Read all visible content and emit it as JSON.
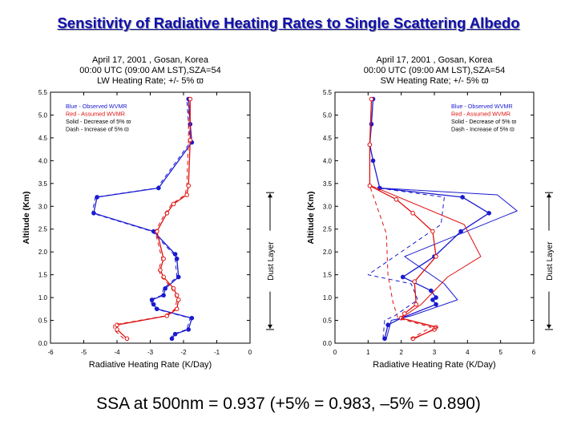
{
  "slide": {
    "title": "Sensitivity of Radiative Heating Rates to Single Scattering Albedo",
    "caption": "SSA at 500nm = 0.937 (+5% = 0.983, –5% = 0.890)"
  },
  "colors": {
    "title": "#1010b0",
    "blue": "#1a1ad0",
    "red": "#e01010",
    "black": "#000000"
  },
  "chart_data": [
    {
      "type": "line",
      "title_lines": [
        "April 17, 2001 , Gosan, Korea",
        "00:00 UTC (09:00 AM LST),SZA=54",
        "LW Heating Rate; +/- 5% ϖ"
      ],
      "xlabel": "Radiative Heating Rate (K/Day)",
      "ylabel": "Altitude (Km)",
      "xlim": [
        -6,
        0
      ],
      "ylim": [
        0,
        5.5
      ],
      "xticks": [
        -6,
        -5,
        -4,
        -3,
        -2,
        -1,
        0
      ],
      "xtick_labels": [
        "-6",
        "-5",
        "-4",
        "-3",
        "-2",
        "-1",
        "0"
      ],
      "yticks": [
        0,
        0.5,
        1,
        1.5,
        2,
        2.5,
        3,
        3.5,
        4,
        4.5,
        5,
        5.5
      ],
      "ytick_labels": [
        "0.0",
        "0.5",
        "1.0",
        "1.5",
        "2.0",
        "2.5",
        "3.0",
        "3.5",
        "4.0",
        "4.5",
        "5.0",
        "5.5"
      ],
      "grid": false,
      "legend_position": "top-left",
      "legend": [
        {
          "text": "Blue - Observed WVMR",
          "color": "#1a1ad0"
        },
        {
          "text": "Red  - Assumed WVMR",
          "color": "#e01010"
        },
        {
          "text": "Solid - Decrease of 5% ϖ",
          "color": "#000000"
        },
        {
          "text": "Dash - Increase of 5% ϖ",
          "color": "#000000"
        }
      ],
      "annotation": {
        "label": "Dust Layer",
        "y_from": 0.3,
        "y_to": 3.3
      },
      "series": [
        {
          "color": "blue",
          "dash": false,
          "markers": "filled",
          "x": [
            -2.35,
            -2.25,
            -1.85,
            -1.75,
            -2.8,
            -2.9,
            -2.95,
            -2.6,
            -2.55,
            -2.15,
            -2.2,
            -2.25,
            -2.9,
            -4.7,
            -4.6,
            -2.75,
            -1.75,
            -1.8,
            -1.85
          ],
          "y": [
            0.1,
            0.2,
            0.3,
            0.55,
            0.75,
            0.85,
            0.95,
            1.05,
            1.2,
            1.45,
            1.85,
            1.95,
            2.45,
            2.85,
            3.2,
            3.4,
            4.4,
            4.8,
            5.35
          ]
        },
        {
          "color": "blue",
          "dash": true,
          "markers": "none",
          "x": [
            -2.4,
            -2.3,
            -1.9,
            -1.8,
            -2.85,
            -2.95,
            -3.0,
            -2.65,
            -2.6,
            -2.2,
            -2.25,
            -2.3,
            -2.95,
            -4.75,
            -4.65,
            -2.8,
            -1.8,
            -1.85,
            -1.9
          ],
          "y": [
            0.1,
            0.2,
            0.3,
            0.55,
            0.75,
            0.85,
            0.95,
            1.05,
            1.2,
            1.45,
            1.85,
            1.95,
            2.45,
            2.85,
            3.2,
            3.4,
            4.4,
            4.8,
            5.35
          ]
        },
        {
          "color": "red",
          "dash": false,
          "markers": "open",
          "x": [
            -3.7,
            -4.0,
            -4.0,
            -2.5,
            -2.2,
            -2.15,
            -2.2,
            -2.3,
            -2.6,
            -2.7,
            -2.6,
            -2.8,
            -2.5,
            -2.3,
            -1.9,
            -1.85,
            -1.8,
            -1.8
          ],
          "y": [
            0.1,
            0.3,
            0.4,
            0.6,
            0.75,
            0.95,
            1.05,
            1.2,
            1.45,
            1.6,
            1.85,
            2.45,
            2.85,
            3.05,
            3.25,
            3.45,
            4.45,
            5.35
          ]
        },
        {
          "color": "red",
          "dash": true,
          "markers": "none",
          "x": [
            -3.8,
            -4.1,
            -4.1,
            -2.55,
            -2.25,
            -2.2,
            -2.25,
            -2.35,
            -2.65,
            -2.75,
            -2.65,
            -2.85,
            -2.55,
            -2.35,
            -1.95,
            -1.9,
            -1.85,
            -1.85
          ],
          "y": [
            0.1,
            0.3,
            0.4,
            0.6,
            0.75,
            0.95,
            1.05,
            1.2,
            1.45,
            1.6,
            1.85,
            2.45,
            2.85,
            3.05,
            3.25,
            3.45,
            4.45,
            5.35
          ]
        }
      ]
    },
    {
      "type": "line",
      "title_lines": [
        "April 17, 2001 , Gosan, Korea",
        "00:00 UTC (09:00 AM LST),SZA=54",
        "SW Heating Rate; +/- 5% ϖ"
      ],
      "xlabel": "Radiative Heating Rate (K/Day)",
      "ylabel": "Altitude (Km)",
      "xlim": [
        0,
        6
      ],
      "ylim": [
        0,
        5.5
      ],
      "xticks": [
        0,
        1,
        2,
        3,
        4,
        5,
        6
      ],
      "xtick_labels": [
        "0",
        "1",
        "2",
        "3",
        "4",
        "5",
        "6"
      ],
      "yticks": [
        0,
        0.5,
        1,
        1.5,
        2,
        2.5,
        3,
        3.5,
        4,
        4.5,
        5,
        5.5
      ],
      "ytick_labels": [
        "0.0",
        "0.5",
        "1.0",
        "1.5",
        "2.0",
        "2.5",
        "3.0",
        "3.5",
        "4.0",
        "4.5",
        "5.0",
        "5.5"
      ],
      "grid": false,
      "legend_position": "top-right",
      "legend": [
        {
          "text": "Blue - Observed WVMR",
          "color": "#1a1ad0"
        },
        {
          "text": "Red  - Assumed WVMR",
          "color": "#e01010"
        },
        {
          "text": "Solid - Decrease of 5% ϖ",
          "color": "#000000"
        },
        {
          "text": "Dash - Increase of 5% ϖ",
          "color": "#000000"
        }
      ],
      "annotation": {
        "label": "Dust Layer",
        "y_from": 0.3,
        "y_to": 3.3
      },
      "series": [
        {
          "color": "blue",
          "dash": false,
          "markers": "filled",
          "x": [
            1.5,
            1.6,
            2.0,
            3.05,
            2.95,
            3.05,
            2.9,
            2.05,
            3.0,
            3.8,
            4.65,
            3.85,
            1.35,
            1.15,
            1.05,
            1.1,
            1.15
          ],
          "y": [
            0.1,
            0.4,
            0.55,
            0.85,
            0.95,
            1.0,
            1.15,
            1.45,
            1.9,
            2.45,
            2.85,
            3.2,
            3.4,
            4.0,
            4.35,
            4.8,
            5.35
          ]
        },
        {
          "color": "blue",
          "dash": false,
          "markers": "none",
          "x": [
            1.55,
            1.7,
            2.3,
            3.7,
            3.3,
            2.1,
            5.5,
            4.9,
            1.35
          ],
          "y": [
            0.1,
            0.5,
            0.6,
            0.95,
            1.3,
            1.9,
            2.9,
            3.25,
            3.4
          ]
        },
        {
          "color": "blue",
          "dash": true,
          "markers": "none",
          "x": [
            1.45,
            1.5,
            1.8,
            2.5,
            2.3,
            1.0,
            3.2,
            3.3,
            1.3
          ],
          "y": [
            0.1,
            0.5,
            0.6,
            0.95,
            1.3,
            1.5,
            2.6,
            3.2,
            3.4
          ]
        },
        {
          "color": "red",
          "dash": false,
          "markers": "open",
          "x": [
            2.35,
            3.0,
            3.05,
            2.0,
            2.1,
            2.45,
            2.4,
            3.05,
            2.95,
            2.35,
            1.85,
            1.05,
            1.05,
            1.1
          ],
          "y": [
            0.1,
            0.3,
            0.35,
            0.55,
            0.65,
            0.85,
            1.35,
            1.9,
            2.45,
            2.85,
            3.15,
            3.45,
            4.35,
            5.35
          ]
        },
        {
          "color": "red",
          "dash": false,
          "markers": "none",
          "x": [
            2.4,
            3.1,
            2.0,
            2.6,
            3.4,
            4.4,
            3.9,
            1.1
          ],
          "y": [
            0.1,
            0.35,
            0.55,
            0.85,
            1.45,
            1.9,
            2.6,
            3.45
          ]
        },
        {
          "color": "red",
          "dash": true,
          "markers": "none",
          "x": [
            2.3,
            2.9,
            1.9,
            1.75,
            1.6,
            1.55,
            1.05
          ],
          "y": [
            0.1,
            0.35,
            0.55,
            0.9,
            1.5,
            2.4,
            3.45
          ]
        }
      ]
    }
  ]
}
